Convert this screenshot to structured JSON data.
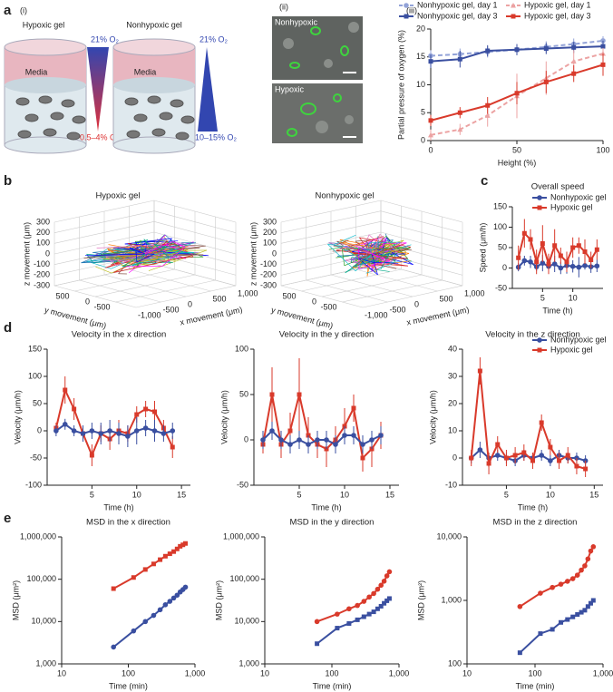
{
  "figure": {
    "panel_labels": [
      "a",
      "b",
      "c",
      "d",
      "e"
    ],
    "subpanel_labels": [
      "(i)",
      "(ii)",
      "(iii)"
    ]
  },
  "gel_diagram": {
    "hypoxic": {
      "title": "Hypoxic gel",
      "media": "Media",
      "top": "21% O₂",
      "bottom": "0.5–4% O₂"
    },
    "nonhypoxic": {
      "title": "Nonhypoxic gel",
      "media": "Media",
      "top": "21% O₂",
      "bottom": "10–15% O₂"
    }
  },
  "microscopy": {
    "labels": [
      "Nonhypoxic",
      "Hypoxic"
    ]
  },
  "trajectory_plots": [
    {
      "title": "Hypoxic gel",
      "z_label": "z movement (μm)",
      "y_label": "y movement (μm)",
      "x_label": "x movement (μm)",
      "z_ticks": [
        "300",
        "200",
        "100",
        "0",
        "-100",
        "-200",
        "-300"
      ],
      "y_ticks": [
        "500",
        "0",
        "-500"
      ],
      "x_ticks": [
        "-1,000",
        "-500",
        "0",
        "500",
        "1,000"
      ]
    },
    {
      "title": "Nonhypoxic gel",
      "z_label": "z movement (μm)",
      "y_label": "y movement (μm)",
      "x_label": "x movement (μm)",
      "z_ticks": [
        "300",
        "200",
        "100",
        "0",
        "-100",
        "-200",
        "-300"
      ],
      "y_ticks": [
        "500",
        "0",
        "-500"
      ],
      "x_ticks": [
        "-1,000",
        "-500",
        "0",
        "500",
        "1,000"
      ]
    }
  ],
  "chart_data": [
    {
      "type": "line",
      "x_label": "Height (%)",
      "y_label": "Partial pressure of oxygen (%)",
      "legend": "top",
      "x": [
        0,
        17,
        33,
        50,
        67,
        83,
        100
      ],
      "xlim": [
        0,
        100
      ],
      "xticks": [
        0,
        50,
        100
      ],
      "ylim": [
        0,
        20
      ],
      "yticks": [
        0,
        5,
        10,
        15,
        20
      ],
      "series": [
        {
          "name": "Nonhypoxic gel, day 1",
          "color": "#93a3d8",
          "dash": true,
          "marker": "circle",
          "values": [
            15.2,
            15.5,
            15.9,
            16.3,
            16.8,
            17.3,
            17.9
          ],
          "errors": [
            1,
            1,
            1,
            1,
            1,
            1,
            0.8
          ]
        },
        {
          "name": "Nonhypoxic gel, day 3",
          "color": "#3a4fa0",
          "dash": false,
          "marker": "square",
          "values": [
            14.2,
            14.6,
            16.1,
            16.3,
            16.5,
            16.7,
            16.9
          ],
          "errors": [
            1.2,
            1.5,
            1,
            1,
            1,
            1,
            1
          ]
        },
        {
          "name": "Hypoxic gel, day 1",
          "color": "#eca3a3",
          "dash": true,
          "marker": "triangle",
          "values": [
            1.0,
            2.0,
            4.5,
            8.0,
            11.2,
            14.2,
            15.6
          ],
          "errors": [
            1,
            1,
            2,
            4,
            3,
            2,
            1
          ]
        },
        {
          "name": "Hypoxic gel, day 3",
          "color": "#d93a2b",
          "dash": false,
          "marker": "square",
          "values": [
            3.6,
            5.0,
            6.3,
            8.5,
            10.5,
            12.0,
            13.6
          ],
          "errors": [
            1,
            1,
            1.5,
            2,
            2,
            1.5,
            2
          ]
        }
      ]
    },
    {
      "type": "line",
      "title": "Overall speed",
      "x_label": "Time (h)",
      "y_label": "Speed (μm/h)",
      "legend": "upper right",
      "x": [
        1,
        2,
        3,
        4,
        5,
        6,
        7,
        8,
        9,
        10,
        11,
        12,
        13,
        14
      ],
      "xlim": [
        0,
        15
      ],
      "xticks": [
        5,
        10
      ],
      "ylim": [
        -50,
        150
      ],
      "yticks": [
        -50,
        0,
        50,
        100,
        150
      ],
      "series": [
        {
          "name": "Nonhypoxic gel",
          "color": "#3a4fa0",
          "marker": "circle",
          "values": [
            2,
            18,
            15,
            3,
            12,
            4,
            10,
            0,
            6,
            4,
            2,
            6,
            3,
            5
          ],
          "errors": [
            10,
            12,
            15,
            10,
            20,
            15,
            20,
            15,
            20,
            15,
            25,
            10,
            15,
            15
          ]
        },
        {
          "name": "Hypoxic gel",
          "color": "#d93a2b",
          "marker": "square",
          "values": [
            25,
            85,
            70,
            15,
            60,
            10,
            55,
            30,
            15,
            50,
            55,
            40,
            20,
            45
          ],
          "errors": [
            30,
            35,
            25,
            30,
            45,
            25,
            40,
            20,
            25,
            25,
            20,
            30,
            20,
            25
          ]
        }
      ]
    },
    {
      "type": "line",
      "title": "Velocity in the x direction",
      "x_label": "Time (h)",
      "y_label": "Velocity (μm/h)",
      "x": [
        1,
        2,
        3,
        4,
        5,
        6,
        7,
        8,
        9,
        10,
        11,
        12,
        13,
        14
      ],
      "xlim": [
        0,
        16
      ],
      "xticks": [
        5,
        10,
        15
      ],
      "ylim": [
        -100,
        150
      ],
      "yticks": [
        -100,
        -50,
        0,
        50,
        100,
        150
      ],
      "series": [
        {
          "color": "#d93a2b",
          "marker": "square",
          "values": [
            5,
            75,
            40,
            -5,
            -45,
            -5,
            -15,
            0,
            -5,
            30,
            40,
            35,
            5,
            -30
          ],
          "errors": [
            10,
            25,
            20,
            15,
            20,
            15,
            20,
            20,
            15,
            15,
            15,
            20,
            15,
            20
          ]
        },
        {
          "color": "#3a4fa0",
          "marker": "circle",
          "values": [
            0,
            12,
            0,
            -5,
            0,
            -5,
            0,
            -5,
            -10,
            0,
            5,
            0,
            -5,
            0
          ],
          "errors": [
            10,
            10,
            10,
            15,
            15,
            20,
            20,
            20,
            20,
            25,
            15,
            20,
            15,
            15
          ]
        }
      ]
    },
    {
      "type": "line",
      "title": "Velocity in the y direction",
      "x_label": "Time (h)",
      "y_label": "Velocity (μm/h)",
      "x": [
        1,
        2,
        3,
        4,
        5,
        6,
        7,
        8,
        9,
        10,
        11,
        12,
        13,
        14
      ],
      "xlim": [
        0,
        16
      ],
      "xticks": [
        5,
        10,
        15
      ],
      "ylim": [
        -50,
        100
      ],
      "yticks": [
        -50,
        0,
        50,
        100
      ],
      "series": [
        {
          "color": "#d93a2b",
          "marker": "square",
          "values": [
            -5,
            50,
            -5,
            10,
            50,
            5,
            -5,
            -10,
            0,
            15,
            35,
            -20,
            -10,
            5
          ],
          "errors": [
            10,
            30,
            15,
            20,
            40,
            20,
            15,
            20,
            15,
            20,
            15,
            15,
            20,
            15
          ]
        },
        {
          "color": "#3a4fa0",
          "marker": "circle",
          "values": [
            0,
            10,
            0,
            -5,
            0,
            -5,
            0,
            0,
            -5,
            5,
            5,
            -5,
            0,
            5
          ],
          "errors": [
            10,
            10,
            10,
            10,
            10,
            10,
            10,
            10,
            10,
            10,
            10,
            10,
            10,
            10
          ]
        }
      ]
    },
    {
      "type": "line",
      "title": "Velocity in the z direction",
      "x_label": "Time (h)",
      "y_label": "Velocity (μm/h)",
      "legend": "upper right",
      "x": [
        1,
        2,
        3,
        4,
        5,
        6,
        7,
        8,
        9,
        10,
        11,
        12,
        13,
        14
      ],
      "xlim": [
        0,
        16
      ],
      "xticks": [
        5,
        10,
        15
      ],
      "ylim": [
        -10,
        40
      ],
      "yticks": [
        -10,
        0,
        10,
        20,
        30,
        40
      ],
      "series": [
        {
          "name": "Nonhypoxic gel",
          "color": "#3a4fa0",
          "marker": "circle",
          "values": [
            0,
            3,
            0,
            1,
            0,
            -1,
            1,
            0,
            1,
            -1,
            1,
            0,
            0,
            -1
          ],
          "errors": [
            2,
            3,
            2,
            2,
            2,
            2,
            2,
            2,
            2,
            2,
            2,
            2,
            2,
            2
          ]
        },
        {
          "name": "Hypoxic gel",
          "color": "#d93a2b",
          "marker": "square",
          "values": [
            0,
            32,
            -2,
            5,
            0,
            1,
            2,
            -1,
            13,
            4,
            -1,
            1,
            -3,
            -4
          ],
          "errors": [
            3,
            5,
            4,
            3,
            3,
            3,
            3,
            3,
            3,
            3,
            3,
            3,
            3,
            3
          ]
        }
      ]
    },
    {
      "type": "line",
      "title": "MSD in the x direction",
      "x_label": "Time (min)",
      "y_label": "MSD (μm²)",
      "xscale": "log",
      "yscale": "log",
      "x": [
        60,
        120,
        180,
        240,
        300,
        360,
        420,
        480,
        540,
        600,
        660,
        720
      ],
      "xlim": [
        10,
        1000
      ],
      "xticks": [
        10,
        100,
        {
          "value": 1000,
          "label": "1,000"
        }
      ],
      "ylim": [
        1000,
        1000000
      ],
      "yticks": [
        {
          "value": 1000,
          "label": "1,000"
        },
        {
          "value": 10000,
          "label": "10,000"
        },
        {
          "value": 100000,
          "label": "100,000"
        },
        {
          "value": 1000000,
          "label": "1,000,000"
        }
      ],
      "series": [
        {
          "color": "#d93a2b",
          "marker": "square",
          "values": [
            60000,
            110000,
            170000,
            230000,
            290000,
            350000,
            400000,
            450000,
            520000,
            600000,
            650000,
            700000
          ]
        },
        {
          "color": "#3a4fa0",
          "marker": "circle",
          "values": [
            2500,
            6000,
            10000,
            14000,
            19000,
            25000,
            30000,
            36000,
            42000,
            50000,
            57000,
            65000
          ]
        }
      ]
    },
    {
      "type": "line",
      "title": "MSD in the y direction",
      "x_label": "Time (min)",
      "y_label": "MSD (μm²)",
      "xscale": "log",
      "yscale": "log",
      "x": [
        60,
        120,
        180,
        240,
        300,
        360,
        420,
        480,
        540,
        600,
        660,
        720
      ],
      "xlim": [
        10,
        1000
      ],
      "xticks": [
        10,
        100,
        {
          "value": 1000,
          "label": "1,000"
        }
      ],
      "ylim": [
        1000,
        1000000
      ],
      "yticks": [
        {
          "value": 1000,
          "label": "1,000"
        },
        {
          "value": 10000,
          "label": "10,000"
        },
        {
          "value": 100000,
          "label": "100,000"
        },
        {
          "value": 1000000,
          "label": "1,000,000"
        }
      ],
      "series": [
        {
          "color": "#d93a2b",
          "marker": "circle",
          "values": [
            10000,
            15000,
            20000,
            24000,
            30000,
            38000,
            46000,
            58000,
            72000,
            90000,
            120000,
            150000
          ]
        },
        {
          "color": "#3a4fa0",
          "marker": "square",
          "values": [
            3000,
            7000,
            9000,
            11000,
            13000,
            15000,
            17000,
            20000,
            23000,
            27000,
            31000,
            35000
          ]
        }
      ]
    },
    {
      "type": "line",
      "title": "MSD in the z direction",
      "x_label": "Time (min)",
      "y_label": "MSD (μm²)",
      "xscale": "log",
      "yscale": "log",
      "x": [
        60,
        120,
        180,
        240,
        300,
        360,
        420,
        480,
        540,
        600,
        660,
        720
      ],
      "xlim": [
        10,
        1000
      ],
      "xticks": [
        10,
        100,
        {
          "value": 1000,
          "label": "1,000"
        }
      ],
      "ylim": [
        100,
        10000
      ],
      "yticks": [
        100,
        {
          "value": 1000,
          "label": "1,000"
        },
        {
          "value": 10000,
          "label": "10,000"
        }
      ],
      "series": [
        {
          "color": "#d93a2b",
          "marker": "circle",
          "values": [
            800,
            1300,
            1600,
            1800,
            2000,
            2200,
            2500,
            3000,
            3500,
            4500,
            6000,
            7000
          ]
        },
        {
          "color": "#3a4fa0",
          "marker": "square",
          "values": [
            150,
            300,
            350,
            450,
            500,
            550,
            600,
            650,
            700,
            800,
            900,
            1000
          ]
        }
      ]
    }
  ]
}
